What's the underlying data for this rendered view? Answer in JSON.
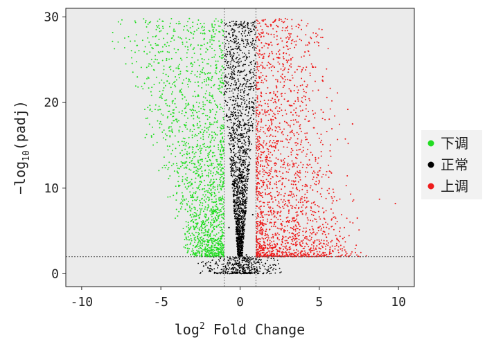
{
  "chart_data": {
    "type": "scatter",
    "xlabel_main": "log",
    "xlabel_sup": "2",
    "xlabel_rest": " Fold Change",
    "ylabel_main": "−log",
    "ylabel_sub": "10",
    "ylabel_rest": "(padj)",
    "xlim": [
      -11,
      11
    ],
    "ylim": [
      -1.5,
      31
    ],
    "xticks": [
      -10,
      -5,
      0,
      5,
      10
    ],
    "yticks": [
      0,
      10,
      20,
      30
    ],
    "thresholds": {
      "x": [
        -1,
        1
      ],
      "y": 2
    },
    "grid": false,
    "legend_position": "right",
    "series": [
      {
        "name": "下调",
        "color": "#22dd22"
      },
      {
        "name": "正常",
        "color": "#000000"
      },
      {
        "name": "上调",
        "color": "#ee1c1c"
      }
    ],
    "sample_points": {
      "down": [
        [
          -5.5,
          26.3
        ],
        [
          -4.9,
          29.5
        ],
        [
          -4.6,
          22.5
        ],
        [
          -3.2,
          29.8
        ],
        [
          -2.4,
          25.1
        ],
        [
          -1.6,
          18.2
        ],
        [
          -1.2,
          8.6
        ],
        [
          -3.9,
          15.4
        ],
        [
          -2.8,
          11.7
        ],
        [
          -4.3,
          17.6
        ]
      ],
      "normal": [
        [
          0.0,
          0.1
        ],
        [
          -0.3,
          1.5
        ],
        [
          0.4,
          2.2
        ],
        [
          -0.7,
          5.4
        ],
        [
          0.8,
          6.9
        ],
        [
          0.6,
          23.6
        ],
        [
          -0.5,
          28.6
        ],
        [
          1.6,
          1.2
        ],
        [
          -2.3,
          0.9
        ],
        [
          0.2,
          14.8
        ]
      ],
      "up": [
        [
          1.4,
          29.6
        ],
        [
          2.9,
          28.7
        ],
        [
          4.1,
          25.9
        ],
        [
          5.2,
          22.6
        ],
        [
          6.8,
          19.2
        ],
        [
          7.1,
          17.5
        ],
        [
          8.8,
          8.7
        ],
        [
          9.8,
          8.2
        ],
        [
          7.4,
          6.5
        ],
        [
          2.2,
          15.3
        ]
      ]
    }
  }
}
